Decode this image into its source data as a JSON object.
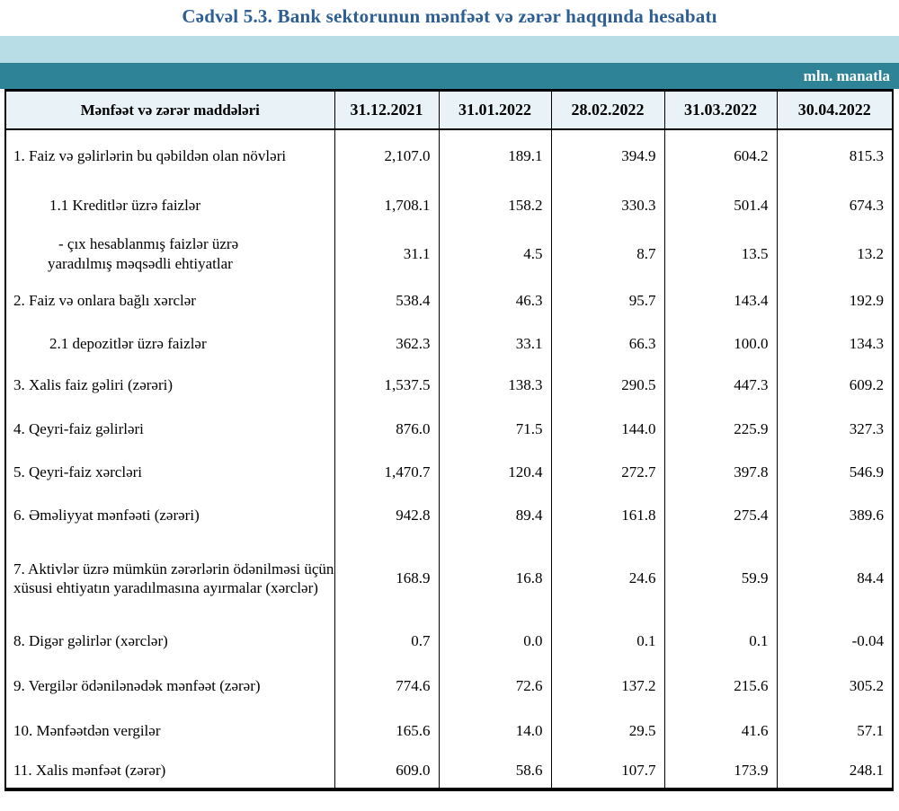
{
  "title": "Cədvəl 5.3. Bank sektorunun mənfəət və zərər haqqında hesabatı",
  "unit_label": "mln. manatla",
  "colors": {
    "title_blue": "#2d5e94",
    "band_light_blue": "#b9dde7",
    "band_teal": "#2f8397",
    "header_row_bg": "#e9f3f7",
    "text": "#000000"
  },
  "table": {
    "header_label": "Mənfəət və zərər maddələri",
    "columns": [
      "31.12.2021",
      "31.01.2022",
      "28.02.2022",
      "31.03.2022",
      "30.04.2022"
    ],
    "rows": [
      {
        "label": "1. Faiz və gəlirlərin bu qəbildən olan növləri",
        "indent": "plain",
        "values": [
          "2,107.0",
          "189.1",
          "394.9",
          "604.2",
          "815.3"
        ]
      },
      {
        "label": "1.1 Kreditlər üzrə faizlər",
        "indent": "sub",
        "values": [
          "1,708.1",
          "158.2",
          "330.3",
          "501.4",
          "674.3"
        ]
      },
      {
        "label_lines": [
          "-  çıx hesablanmış faizlər üzrə",
          "yaradılmış məqsədli ehtiyatlar"
        ],
        "indent": "plain",
        "values": [
          "31.1",
          "4.5",
          "8.7",
          "13.5",
          "13.2"
        ]
      },
      {
        "label": "2. Faiz və onlara bağlı xərclər",
        "indent": "plain",
        "values": [
          "538.4",
          "46.3",
          "95.7",
          "143.4",
          "192.9"
        ]
      },
      {
        "label": "2.1 depozitlər üzrə faizlər",
        "indent": "sub",
        "values": [
          "362.3",
          "33.1",
          "66.3",
          "100.0",
          "134.3"
        ]
      },
      {
        "label": "3. Xalis faiz gəliri (zərəri)",
        "indent": "plain",
        "values": [
          "1,537.5",
          "138.3",
          "290.5",
          "447.3",
          "609.2"
        ]
      },
      {
        "label": "4. Qeyri-faiz gəlirləri",
        "indent": "plain",
        "values": [
          "876.0",
          "71.5",
          "144.0",
          "225.9",
          "327.3"
        ]
      },
      {
        "label": "5. Qeyri-faiz xərcləri",
        "indent": "plain",
        "values": [
          "1,470.7",
          "120.4",
          "272.7",
          "397.8",
          "546.9"
        ]
      },
      {
        "label": "6. Əməliyyat mənfəəti (zərəri)",
        "indent": "plain",
        "values": [
          "942.8",
          "89.4",
          "161.8",
          "275.4",
          "389.6"
        ]
      },
      {
        "label": "7. Aktivlər üzrə mümkün zərərlərin ödənilməsi üçün xüsusi ehtiyatın yaradılmasına ayırmalar (xərclər)",
        "indent": "plain",
        "values": [
          "168.9",
          "16.8",
          "24.6",
          "59.9",
          "84.4"
        ]
      },
      {
        "label": "8. Digər gəlirlər (xərclər)",
        "indent": "plain",
        "values": [
          "0.7",
          "0.0",
          "0.1",
          "0.1",
          "-0.04"
        ]
      },
      {
        "label": "9. Vergilər ödənilənədək mənfəət (zərər)",
        "indent": "plain",
        "values": [
          "774.6",
          "72.6",
          "137.2",
          "215.6",
          "305.2"
        ]
      },
      {
        "label": "10. Mənfəətdən vergilər",
        "indent": "plain",
        "values": [
          "165.6",
          "14.0",
          "29.5",
          "41.6",
          "57.1"
        ]
      },
      {
        "label": "11. Xalis mənfəət (zərər)",
        "indent": "plain",
        "values": [
          "609.0",
          "58.6",
          "107.7",
          "173.9",
          "248.1"
        ]
      }
    ]
  },
  "chart_data": {
    "type": "table",
    "title": "Cədvəl 5.3. Bank sektorunun mənfəət və zərər haqqında hesabatı",
    "unit": "mln. manatla",
    "columns": [
      "Mənfəət və zərər maddələri",
      "31.12.2021",
      "31.01.2022",
      "28.02.2022",
      "31.03.2022",
      "30.04.2022"
    ],
    "series": [
      {
        "name": "31.12.2021",
        "values": [
          2107.0,
          1708.1,
          31.1,
          538.4,
          362.3,
          1537.5,
          876.0,
          1470.7,
          942.8,
          168.9,
          0.7,
          774.6,
          165.6,
          609.0
        ]
      },
      {
        "name": "31.01.2022",
        "values": [
          189.1,
          158.2,
          4.5,
          46.3,
          33.1,
          138.3,
          71.5,
          120.4,
          89.4,
          16.8,
          0.0,
          72.6,
          14.0,
          58.6
        ]
      },
      {
        "name": "28.02.2022",
        "values": [
          394.9,
          330.3,
          8.7,
          95.7,
          66.3,
          290.5,
          144.0,
          272.7,
          161.8,
          24.6,
          0.1,
          137.2,
          29.5,
          107.7
        ]
      },
      {
        "name": "31.03.2022",
        "values": [
          604.2,
          501.4,
          13.5,
          143.4,
          100.0,
          447.3,
          225.9,
          397.8,
          275.4,
          59.9,
          0.1,
          215.6,
          41.6,
          173.9
        ]
      },
      {
        "name": "30.04.2022",
        "values": [
          815.3,
          674.3,
          13.2,
          192.9,
          134.3,
          609.2,
          327.3,
          546.9,
          389.6,
          84.4,
          -0.04,
          305.2,
          57.1,
          248.1
        ]
      }
    ]
  }
}
